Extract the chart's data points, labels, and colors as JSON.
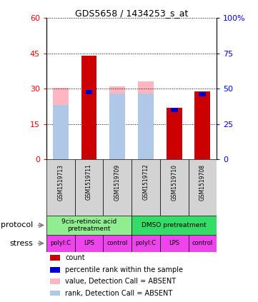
{
  "title": "GDS5658 / 1434253_s_at",
  "samples": [
    "GSM1519713",
    "GSM1519711",
    "GSM1519709",
    "GSM1519712",
    "GSM1519710",
    "GSM1519708"
  ],
  "red_bars": [
    0,
    44,
    0,
    0,
    22,
    29
  ],
  "pink_bars": [
    30.5,
    0,
    31,
    33,
    0,
    0
  ],
  "blue_bars": [
    0,
    29.5,
    0,
    0,
    22,
    28.5
  ],
  "lightblue_bars": [
    23,
    0,
    28,
    28,
    0,
    0
  ],
  "ylim_left": [
    0,
    60
  ],
  "ylim_right": [
    0,
    100
  ],
  "yticks_left": [
    0,
    15,
    30,
    45,
    60
  ],
  "ytick_labels_left": [
    "0",
    "15",
    "30",
    "45",
    "60"
  ],
  "ytick_labels_right": [
    "0",
    "25",
    "50",
    "75",
    "100%"
  ],
  "protocol_groups": [
    {
      "label": "9cis-retinoic acid\npretreatment",
      "start": 0,
      "end": 3,
      "color": "#90ee90"
    },
    {
      "label": "DMSO pretreatment",
      "start": 3,
      "end": 6,
      "color": "#33dd66"
    }
  ],
  "stress_labels": [
    "polyI:C",
    "LPS",
    "control",
    "polyI:C",
    "LPS",
    "control"
  ],
  "stress_color": "#ee44ee",
  "protocol_label": "protocol",
  "stress_label": "stress",
  "legend_items": [
    {
      "color": "#cc0000",
      "label": "count"
    },
    {
      "color": "#0000cc",
      "label": "percentile rank within the sample"
    },
    {
      "color": "#ffb6c1",
      "label": "value, Detection Call = ABSENT"
    },
    {
      "color": "#b0c8e8",
      "label": "rank, Detection Call = ABSENT"
    }
  ],
  "bar_color_red": "#cc0000",
  "bar_color_pink": "#ffb6c1",
  "bar_color_blue": "#0000cc",
  "bar_color_lblue": "#b0c8e8",
  "sample_box_color": "#d3d3d3",
  "bw": 0.55
}
